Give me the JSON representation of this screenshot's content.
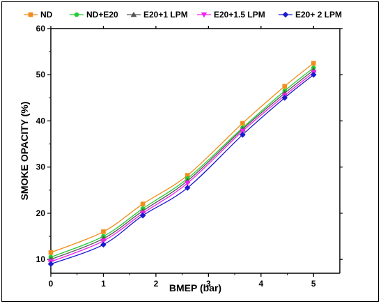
{
  "chart_data": {
    "type": "line",
    "xlabel": "BMEP (bar)",
    "ylabel": "SMOKE OPACITY (%)",
    "xlim": [
      0,
      5.5
    ],
    "ylim": [
      7,
      60
    ],
    "xticks": [
      0,
      1,
      2,
      3,
      4,
      5
    ],
    "yticks": [
      10,
      20,
      30,
      40,
      50,
      60
    ],
    "grid": false,
    "legend_position": "top",
    "x": [
      0,
      1,
      1.75,
      2.6,
      3.65,
      4.45,
      5.0
    ],
    "series": [
      {
        "name": "ND",
        "color": "#f28c1a",
        "marker": "square",
        "values": [
          11.5,
          16.0,
          22.0,
          28.2,
          39.5,
          47.5,
          52.5
        ]
      },
      {
        "name": "ND+E20",
        "color": "#22cc33",
        "marker": "circle",
        "values": [
          10.5,
          15.0,
          21.0,
          27.5,
          38.5,
          46.5,
          51.5
        ]
      },
      {
        "name": "E20+1 LPM",
        "color": "#555555",
        "marker": "triangle-up",
        "values": [
          10.0,
          14.5,
          20.5,
          27.0,
          38.2,
          46.0,
          51.0
        ]
      },
      {
        "name": "E20+1.5 LPM",
        "color": "#ee22ee",
        "marker": "triangle-down",
        "values": [
          9.5,
          14.0,
          20.0,
          26.5,
          37.8,
          45.5,
          50.5
        ]
      },
      {
        "name": "E20+ 2 LPM",
        "color": "#1a1acc",
        "marker": "diamond",
        "values": [
          9.0,
          13.2,
          19.5,
          25.5,
          37.0,
          45.0,
          50.0
        ]
      }
    ]
  }
}
